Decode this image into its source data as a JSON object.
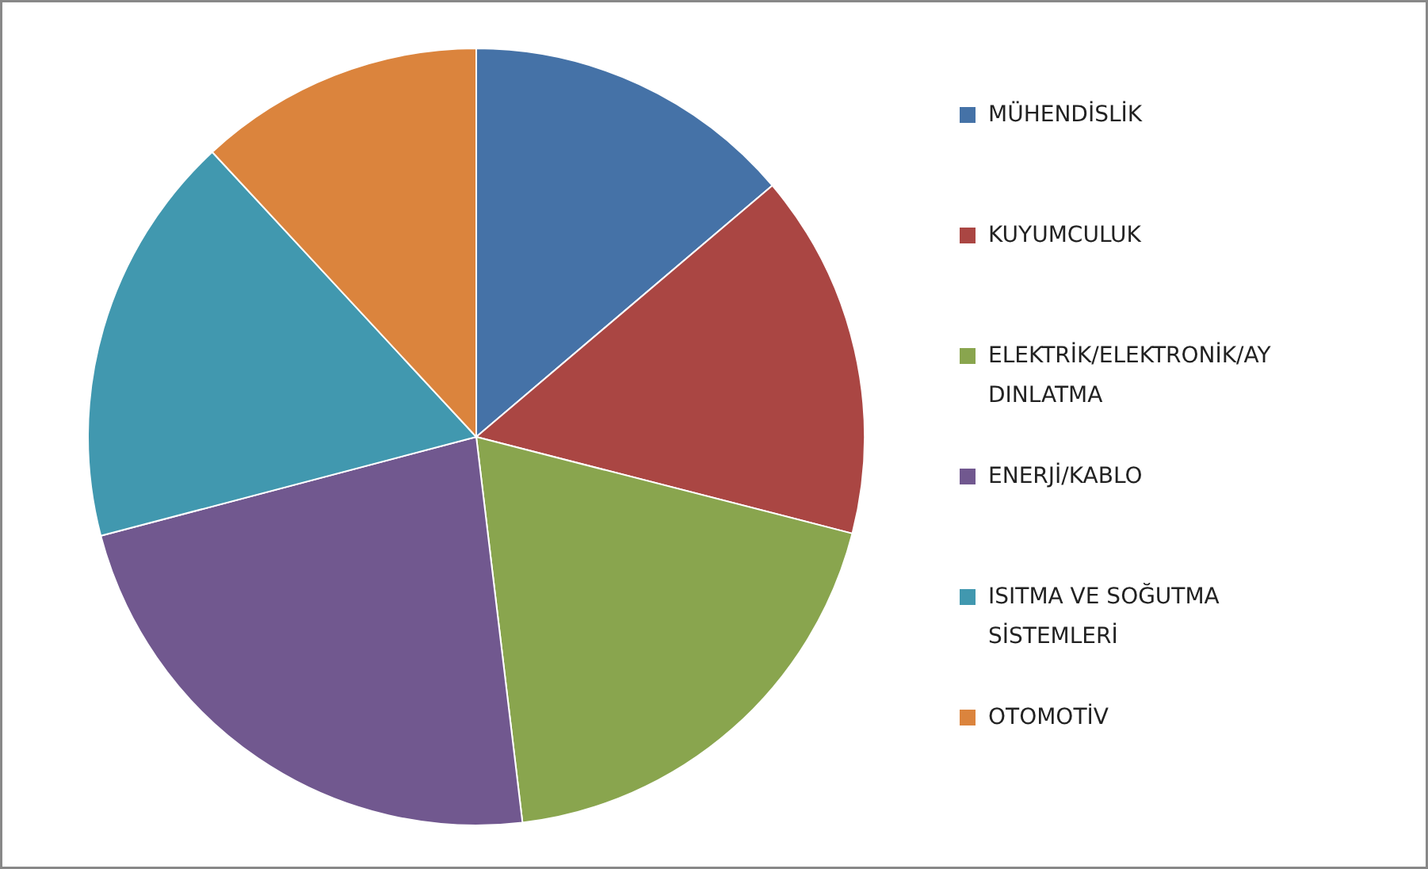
{
  "chart_data": {
    "type": "pie",
    "categories": [
      "MÜHENDİSLİK",
      "KUYUMCULUK",
      "ELEKTRİK/ELEKTRONİK/AYDINLATMA",
      "ENERJİ/KABLO",
      "ISITMA VE SOĞUTMA SİSTEMLERİ",
      "OTOMOTİV"
    ],
    "values": [
      13.8,
      15.2,
      19.1,
      22.8,
      17.2,
      11.9
    ],
    "colors": [
      "#4572a7",
      "#aa4643",
      "#89a54e",
      "#71588f",
      "#4198af",
      "#db843d"
    ],
    "legend": "right"
  }
}
